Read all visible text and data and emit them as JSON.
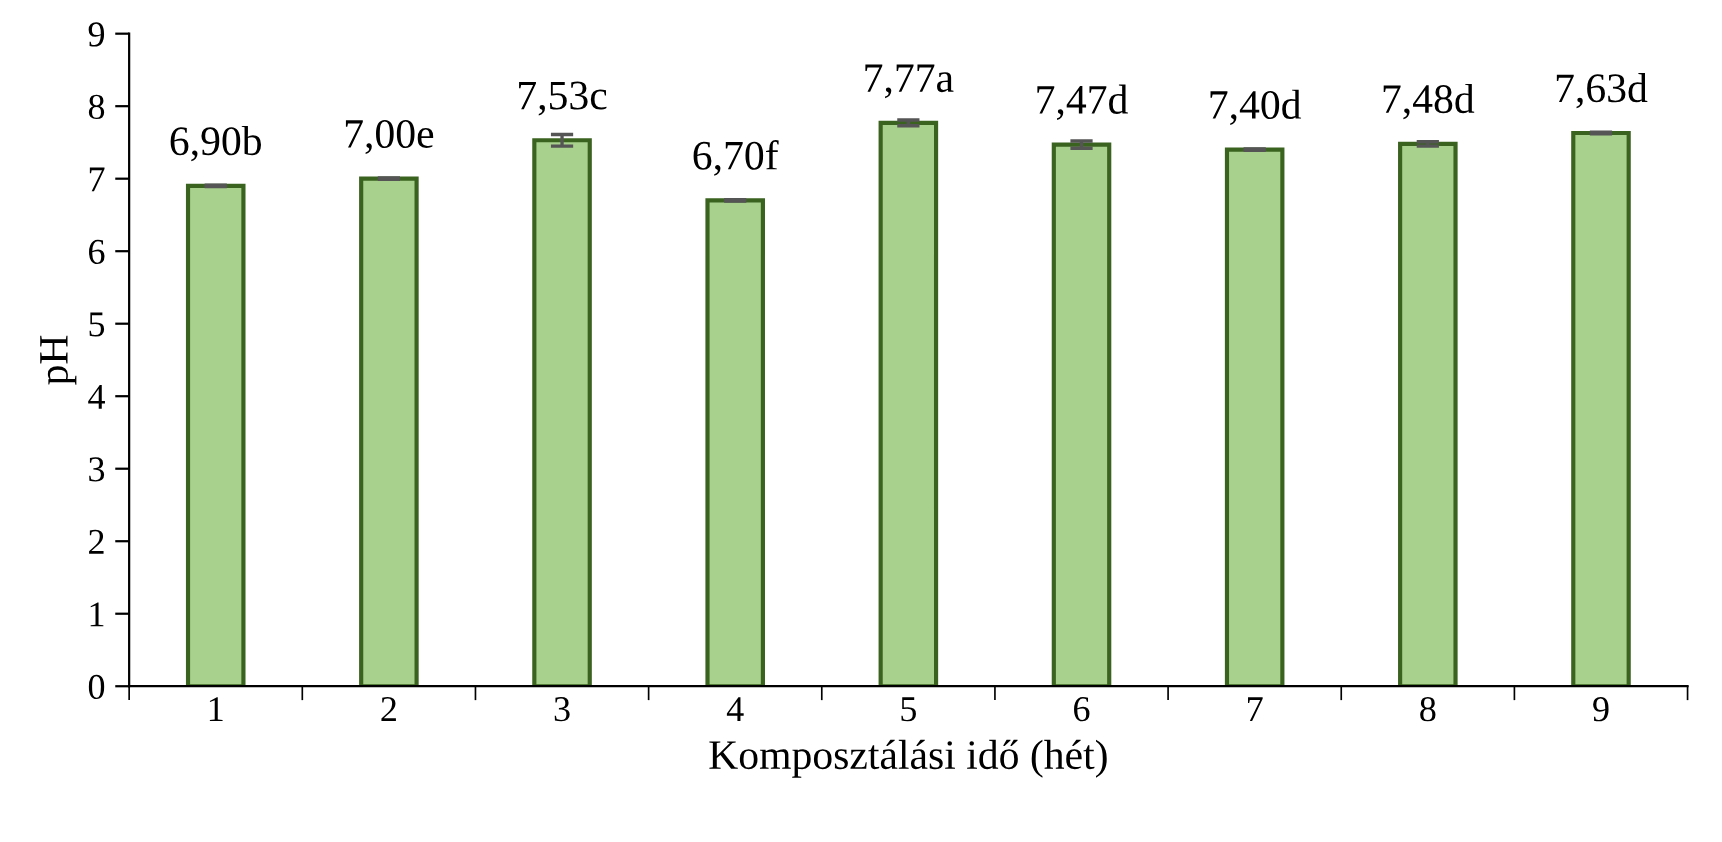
{
  "chart_data": {
    "type": "bar",
    "xlabel": "Komposztálási idő (hét)",
    "ylabel": "pH",
    "categories": [
      "1",
      "2",
      "3",
      "4",
      "5",
      "6",
      "7",
      "8",
      "9"
    ],
    "values": [
      6.9,
      7.0,
      7.53,
      6.7,
      7.77,
      7.47,
      7.4,
      7.48,
      7.63
    ],
    "errors": [
      0.01,
      0.01,
      0.08,
      0.01,
      0.04,
      0.05,
      0.01,
      0.03,
      0.01
    ],
    "value_labels": [
      "6,90b",
      "7,00e",
      "7,53c",
      "6,70f",
      "7,77a",
      "7,47d",
      "7,40d",
      "7,48d",
      "7,63d"
    ],
    "color": "#a9d18e",
    "ylim": [
      0,
      9
    ],
    "yticks": [
      0,
      1,
      2,
      3,
      4,
      5,
      6,
      7,
      8,
      9
    ],
    "grid": false,
    "legend": false
  }
}
